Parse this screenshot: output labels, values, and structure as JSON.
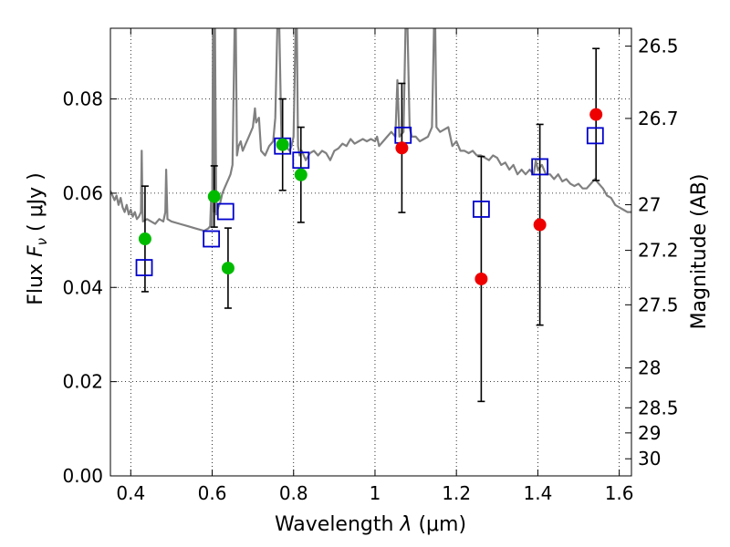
{
  "chart_data": {
    "type": "scatter",
    "xlabel_text": "Wavelength ",
    "xlabel_symbol": "λ",
    "xlabel_unit": " (μm)",
    "ylabel_text": "Flux ",
    "ylabel_symbol": "F",
    "ylabel_sub": "ν",
    "ylabel_unit": " ( μJy )",
    "y2label": "Magnitude (AB)",
    "xlim": [
      0.35,
      1.63
    ],
    "ylim": [
      0.0,
      0.095
    ],
    "grid": true,
    "x_ticks": [
      {
        "value": 0.4,
        "label": "0.4"
      },
      {
        "value": 0.6,
        "label": "0.6"
      },
      {
        "value": 0.8,
        "label": "0.8"
      },
      {
        "value": 1.0,
        "label": "1"
      },
      {
        "value": 1.2,
        "label": "1.2"
      },
      {
        "value": 1.4,
        "label": "1.4"
      },
      {
        "value": 1.6,
        "label": "1.6"
      }
    ],
    "y_ticks": [
      {
        "value": 0.0,
        "label": "0.00"
      },
      {
        "value": 0.02,
        "label": "0.02"
      },
      {
        "value": 0.04,
        "label": "0.04"
      },
      {
        "value": 0.06,
        "label": "0.06"
      },
      {
        "value": 0.08,
        "label": "0.08"
      }
    ],
    "mag_ticks": [
      {
        "mag": 26.5,
        "label": "26.5"
      },
      {
        "mag": 26.7,
        "label": "26.7"
      },
      {
        "mag": 27.0,
        "label": "27"
      },
      {
        "mag": 27.2,
        "label": "27.2"
      },
      {
        "mag": 27.5,
        "label": "27.5"
      },
      {
        "mag": 28.0,
        "label": "28"
      },
      {
        "mag": 28.5,
        "label": "28.5"
      },
      {
        "mag": 29.0,
        "label": "29"
      },
      {
        "mag": 30.0,
        "label": "30"
      }
    ],
    "model_spectrum": {
      "color": "#808080",
      "points": [
        [
          0.35,
          0.0605
        ],
        [
          0.36,
          0.0585
        ],
        [
          0.365,
          0.0595
        ],
        [
          0.37,
          0.0575
        ],
        [
          0.375,
          0.059
        ],
        [
          0.38,
          0.057
        ],
        [
          0.385,
          0.056
        ],
        [
          0.39,
          0.0575
        ],
        [
          0.395,
          0.0555
        ],
        [
          0.4,
          0.0565
        ],
        [
          0.405,
          0.055
        ],
        [
          0.41,
          0.056
        ],
        [
          0.415,
          0.0545
        ],
        [
          0.42,
          0.055
        ],
        [
          0.425,
          0.056
        ],
        [
          0.427,
          0.069
        ],
        [
          0.429,
          0.056
        ],
        [
          0.43,
          0.054
        ],
        [
          0.44,
          0.0545
        ],
        [
          0.45,
          0.054
        ],
        [
          0.46,
          0.0535
        ],
        [
          0.47,
          0.0545
        ],
        [
          0.48,
          0.054
        ],
        [
          0.485,
          0.056
        ],
        [
          0.487,
          0.065
        ],
        [
          0.49,
          0.0545
        ],
        [
          0.5,
          0.054
        ],
        [
          0.52,
          0.0535
        ],
        [
          0.54,
          0.053
        ],
        [
          0.56,
          0.0525
        ],
        [
          0.58,
          0.052
        ],
        [
          0.59,
          0.0525
        ],
        [
          0.595,
          0.053
        ],
        [
          0.598,
          0.06
        ],
        [
          0.6,
          0.053
        ],
        [
          0.602,
          0.095
        ],
        [
          0.605,
          0.056
        ],
        [
          0.607,
          0.095
        ],
        [
          0.61,
          0.0555
        ],
        [
          0.615,
          0.057
        ],
        [
          0.62,
          0.058
        ],
        [
          0.625,
          0.06
        ],
        [
          0.63,
          0.061
        ],
        [
          0.635,
          0.062
        ],
        [
          0.64,
          0.063
        ],
        [
          0.645,
          0.064
        ],
        [
          0.65,
          0.066
        ],
        [
          0.655,
          0.095
        ],
        [
          0.658,
          0.095
        ],
        [
          0.661,
          0.068
        ],
        [
          0.665,
          0.07
        ],
        [
          0.67,
          0.071
        ],
        [
          0.675,
          0.069
        ],
        [
          0.68,
          0.07
        ],
        [
          0.69,
          0.072
        ],
        [
          0.7,
          0.074
        ],
        [
          0.705,
          0.078
        ],
        [
          0.708,
          0.075
        ],
        [
          0.715,
          0.076
        ],
        [
          0.72,
          0.069
        ],
        [
          0.73,
          0.068
        ],
        [
          0.74,
          0.07
        ],
        [
          0.75,
          0.071
        ],
        [
          0.755,
          0.076
        ],
        [
          0.76,
          0.095
        ],
        [
          0.765,
          0.095
        ],
        [
          0.77,
          0.072
        ],
        [
          0.78,
          0.07
        ],
        [
          0.79,
          0.069
        ],
        [
          0.795,
          0.07
        ],
        [
          0.8,
          0.072
        ],
        [
          0.805,
          0.095
        ],
        [
          0.808,
          0.095
        ],
        [
          0.811,
          0.07
        ],
        [
          0.815,
          0.068
        ],
        [
          0.82,
          0.069
        ],
        [
          0.825,
          0.068
        ],
        [
          0.83,
          0.067
        ],
        [
          0.84,
          0.0685
        ],
        [
          0.85,
          0.069
        ],
        [
          0.86,
          0.068
        ],
        [
          0.87,
          0.069
        ],
        [
          0.88,
          0.0685
        ],
        [
          0.89,
          0.067
        ],
        [
          0.9,
          0.069
        ],
        [
          0.91,
          0.0695
        ],
        [
          0.92,
          0.0705
        ],
        [
          0.93,
          0.07
        ],
        [
          0.94,
          0.0715
        ],
        [
          0.95,
          0.0705
        ],
        [
          0.96,
          0.071
        ],
        [
          0.97,
          0.0715
        ],
        [
          0.98,
          0.071
        ],
        [
          0.99,
          0.0715
        ],
        [
          1.0,
          0.071
        ],
        [
          1.005,
          0.072
        ],
        [
          1.01,
          0.07
        ],
        [
          1.02,
          0.071
        ],
        [
          1.03,
          0.072
        ],
        [
          1.04,
          0.073
        ],
        [
          1.05,
          0.072
        ],
        [
          1.055,
          0.084
        ],
        [
          1.06,
          0.072
        ],
        [
          1.07,
          0.073
        ],
        [
          1.075,
          0.095
        ],
        [
          1.08,
          0.095
        ],
        [
          1.085,
          0.074
        ],
        [
          1.09,
          0.072
        ],
        [
          1.1,
          0.072
        ],
        [
          1.11,
          0.071
        ],
        [
          1.12,
          0.0715
        ],
        [
          1.13,
          0.072
        ],
        [
          1.14,
          0.074
        ],
        [
          1.145,
          0.095
        ],
        [
          1.148,
          0.095
        ],
        [
          1.151,
          0.074
        ],
        [
          1.16,
          0.073
        ],
        [
          1.17,
          0.0735
        ],
        [
          1.18,
          0.074
        ],
        [
          1.19,
          0.07
        ],
        [
          1.2,
          0.071
        ],
        [
          1.21,
          0.069
        ],
        [
          1.22,
          0.069
        ],
        [
          1.23,
          0.0685
        ],
        [
          1.24,
          0.069
        ],
        [
          1.25,
          0.068
        ],
        [
          1.26,
          0.068
        ],
        [
          1.27,
          0.0675
        ],
        [
          1.28,
          0.067
        ],
        [
          1.29,
          0.068
        ],
        [
          1.3,
          0.0675
        ],
        [
          1.31,
          0.066
        ],
        [
          1.32,
          0.0665
        ],
        [
          1.33,
          0.065
        ],
        [
          1.34,
          0.066
        ],
        [
          1.35,
          0.064
        ],
        [
          1.36,
          0.065
        ],
        [
          1.37,
          0.064
        ],
        [
          1.38,
          0.065
        ],
        [
          1.39,
          0.064
        ],
        [
          1.395,
          0.067
        ],
        [
          1.4,
          0.065
        ],
        [
          1.41,
          0.066
        ],
        [
          1.42,
          0.064
        ],
        [
          1.43,
          0.064
        ],
        [
          1.44,
          0.063
        ],
        [
          1.45,
          0.064
        ],
        [
          1.46,
          0.0625
        ],
        [
          1.47,
          0.063
        ],
        [
          1.48,
          0.062
        ],
        [
          1.49,
          0.0615
        ],
        [
          1.5,
          0.062
        ],
        [
          1.51,
          0.061
        ],
        [
          1.52,
          0.061
        ],
        [
          1.53,
          0.062
        ],
        [
          1.54,
          0.063
        ],
        [
          1.55,
          0.062
        ],
        [
          1.56,
          0.061
        ],
        [
          1.57,
          0.0595
        ],
        [
          1.58,
          0.059
        ],
        [
          1.59,
          0.0575
        ],
        [
          1.6,
          0.057
        ],
        [
          1.61,
          0.0565
        ],
        [
          1.62,
          0.056
        ],
        [
          1.63,
          0.056
        ]
      ]
    },
    "series": [
      {
        "marker": "square",
        "color": "#0000cc",
        "points": [
          {
            "x": 0.433,
            "y": 0.0442
          },
          {
            "x": 0.598,
            "y": 0.0503
          },
          {
            "x": 0.633,
            "y": 0.0561
          },
          {
            "x": 0.773,
            "y": 0.07
          },
          {
            "x": 0.818,
            "y": 0.067
          },
          {
            "x": 1.069,
            "y": 0.0723
          },
          {
            "x": 1.261,
            "y": 0.0566
          },
          {
            "x": 1.405,
            "y": 0.0656
          },
          {
            "x": 1.541,
            "y": 0.0722
          }
        ]
      },
      {
        "marker": "circle",
        "color": "#00bb00",
        "points": [
          {
            "x": 0.435,
            "y": 0.0503,
            "yerr": 0.0112
          },
          {
            "x": 0.605,
            "y": 0.0593,
            "yerr": 0.0065
          },
          {
            "x": 0.639,
            "y": 0.0441,
            "yerr": 0.0085
          },
          {
            "x": 0.773,
            "y": 0.0703,
            "yerr": 0.0097
          },
          {
            "x": 0.818,
            "y": 0.0639,
            "yerr": 0.0101
          }
        ]
      },
      {
        "marker": "circle",
        "color": "#ee0000",
        "points": [
          {
            "x": 1.066,
            "y": 0.0696,
            "yerr": 0.0137
          },
          {
            "x": 1.261,
            "y": 0.0418,
            "yerr": 0.026
          },
          {
            "x": 1.405,
            "y": 0.0533,
            "yerr": 0.0213
          },
          {
            "x": 1.543,
            "y": 0.0767,
            "yerr": 0.014
          }
        ]
      }
    ]
  }
}
